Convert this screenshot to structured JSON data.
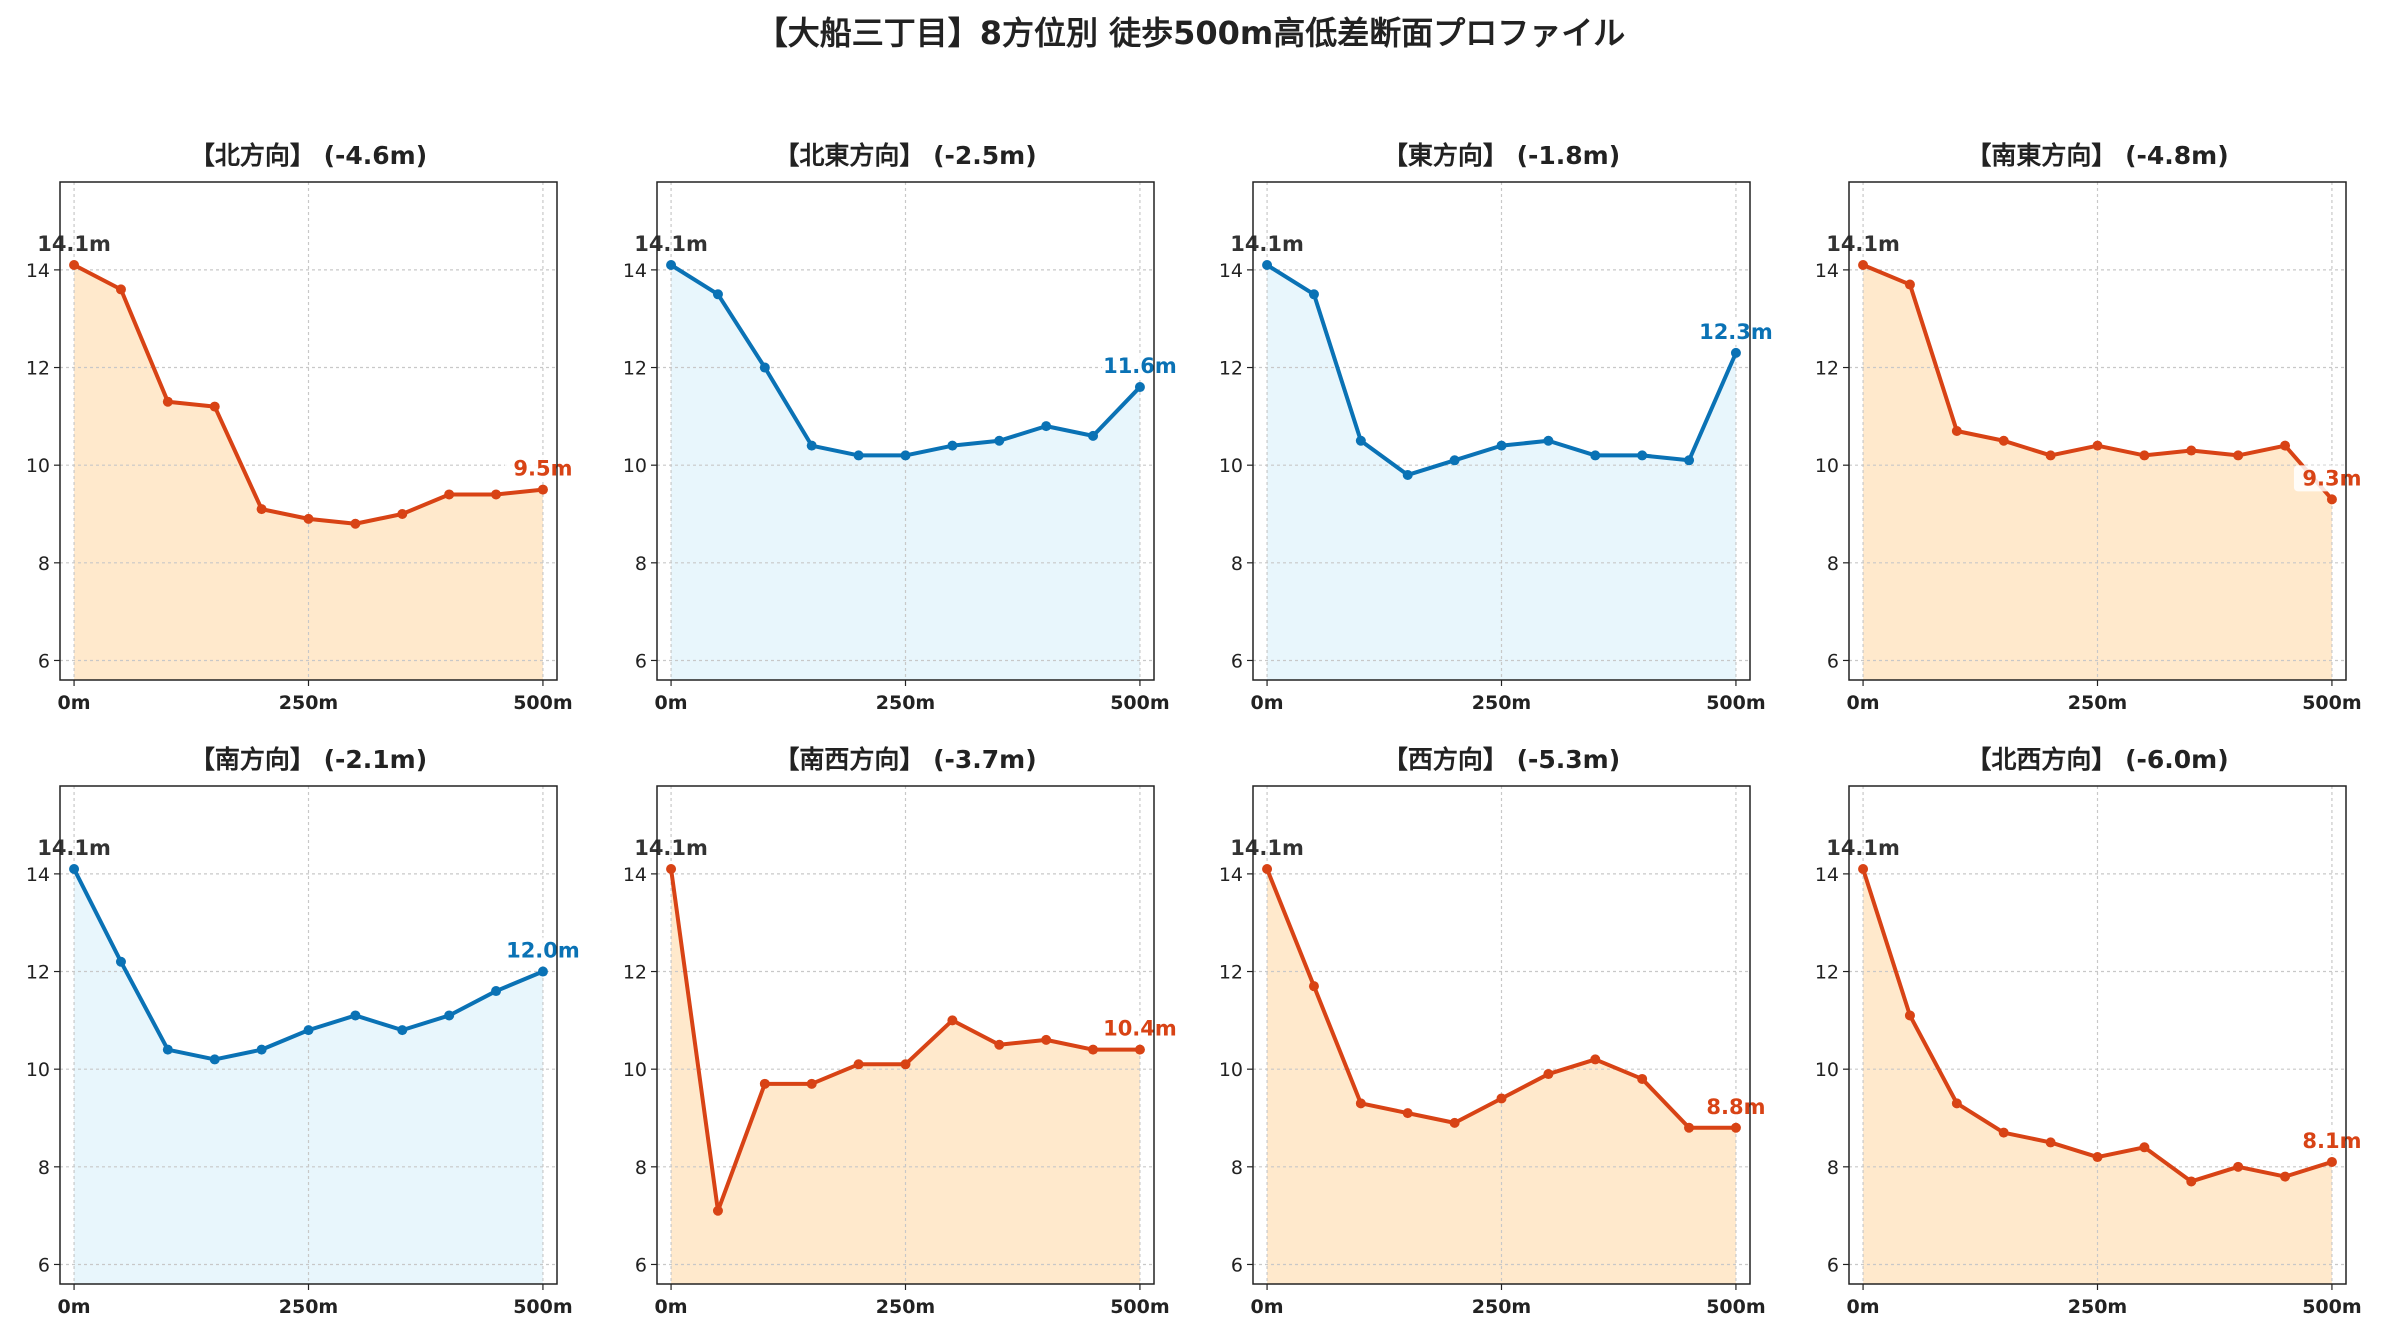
{
  "title": "【大船三丁目】8方位別 徒歩500m高低差断面プロファイル",
  "colors": {
    "down_line": "#d84315",
    "down_fill": "#ffe9cc",
    "up_line": "#0a72b5",
    "up_fill": "#e8f6fc",
    "start_label": "#333333",
    "grid": "#c8c8c8"
  },
  "chart_data": [
    {
      "type": "area",
      "title": "【北方向】 (-4.6m)",
      "trend": "down",
      "x": [
        0,
        50,
        100,
        150,
        200,
        250,
        300,
        350,
        400,
        450,
        500
      ],
      "y": [
        14.1,
        13.6,
        11.3,
        11.2,
        9.1,
        8.9,
        8.8,
        9.0,
        9.4,
        9.4,
        9.5
      ],
      "start_label": "14.1m",
      "end_label": "9.5m",
      "xticks": [
        "0m",
        "250m",
        "500m"
      ],
      "xtick_values": [
        0,
        250,
        500
      ],
      "yticks": [
        6,
        8,
        10,
        12,
        14
      ],
      "xlim": [
        -15,
        515
      ],
      "ylim": [
        5.6,
        15.8
      ],
      "grid": true
    },
    {
      "type": "area",
      "title": "【北東方向】 (-2.5m)",
      "trend": "up",
      "x": [
        0,
        50,
        100,
        150,
        200,
        250,
        300,
        350,
        400,
        450,
        500
      ],
      "y": [
        14.1,
        13.5,
        12.0,
        10.4,
        10.2,
        10.2,
        10.4,
        10.5,
        10.8,
        10.6,
        11.6
      ],
      "start_label": "14.1m",
      "end_label": "11.6m",
      "xticks": [
        "0m",
        "250m",
        "500m"
      ],
      "xtick_values": [
        0,
        250,
        500
      ],
      "yticks": [
        6,
        8,
        10,
        12,
        14
      ],
      "xlim": [
        -15,
        515
      ],
      "ylim": [
        5.6,
        15.8
      ],
      "grid": true
    },
    {
      "type": "area",
      "title": "【東方向】 (-1.8m)",
      "trend": "up",
      "x": [
        0,
        50,
        100,
        150,
        200,
        250,
        300,
        350,
        400,
        450,
        500
      ],
      "y": [
        14.1,
        13.5,
        10.5,
        9.8,
        10.1,
        10.4,
        10.5,
        10.2,
        10.2,
        10.1,
        12.3
      ],
      "start_label": "14.1m",
      "end_label": "12.3m",
      "xticks": [
        "0m",
        "250m",
        "500m"
      ],
      "xtick_values": [
        0,
        250,
        500
      ],
      "yticks": [
        6,
        8,
        10,
        12,
        14
      ],
      "xlim": [
        -15,
        515
      ],
      "ylim": [
        5.6,
        15.8
      ],
      "grid": true
    },
    {
      "type": "area",
      "title": "【南東方向】 (-4.8m)",
      "trend": "down",
      "x": [
        0,
        50,
        100,
        150,
        200,
        250,
        300,
        350,
        400,
        450,
        500
      ],
      "y": [
        14.1,
        13.7,
        10.7,
        10.5,
        10.2,
        10.4,
        10.2,
        10.3,
        10.2,
        10.4,
        9.3
      ],
      "start_label": "14.1m",
      "end_label": "9.3m",
      "xticks": [
        "0m",
        "250m",
        "500m"
      ],
      "xtick_values": [
        0,
        250,
        500
      ],
      "yticks": [
        6,
        8,
        10,
        12,
        14
      ],
      "xlim": [
        -15,
        515
      ],
      "ylim": [
        5.6,
        15.8
      ],
      "grid": true
    },
    {
      "type": "area",
      "title": "【南方向】 (-2.1m)",
      "trend": "up",
      "x": [
        0,
        50,
        100,
        150,
        200,
        250,
        300,
        350,
        400,
        450,
        500
      ],
      "y": [
        14.1,
        12.2,
        10.4,
        10.2,
        10.4,
        10.8,
        11.1,
        10.8,
        11.1,
        11.6,
        12.0
      ],
      "start_label": "14.1m",
      "end_label": "12.0m",
      "xticks": [
        "0m",
        "250m",
        "500m"
      ],
      "xtick_values": [
        0,
        250,
        500
      ],
      "yticks": [
        6,
        8,
        10,
        12,
        14
      ],
      "xlim": [
        -15,
        515
      ],
      "ylim": [
        5.6,
        15.8
      ],
      "grid": true
    },
    {
      "type": "area",
      "title": "【南西方向】 (-3.7m)",
      "trend": "down",
      "x": [
        0,
        50,
        100,
        150,
        200,
        250,
        300,
        350,
        400,
        450,
        500
      ],
      "y": [
        14.1,
        7.1,
        9.7,
        9.7,
        10.1,
        10.1,
        11.0,
        10.5,
        10.6,
        10.4,
        10.4
      ],
      "start_label": "14.1m",
      "end_label": "10.4m",
      "xticks": [
        "0m",
        "250m",
        "500m"
      ],
      "xtick_values": [
        0,
        250,
        500
      ],
      "yticks": [
        6,
        8,
        10,
        12,
        14
      ],
      "xlim": [
        -15,
        515
      ],
      "ylim": [
        5.6,
        15.8
      ],
      "grid": true
    },
    {
      "type": "area",
      "title": "【西方向】 (-5.3m)",
      "trend": "down",
      "x": [
        0,
        50,
        100,
        150,
        200,
        250,
        300,
        350,
        400,
        450,
        500
      ],
      "y": [
        14.1,
        11.7,
        9.3,
        9.1,
        8.9,
        9.4,
        9.9,
        10.2,
        9.8,
        8.8,
        8.8
      ],
      "start_label": "14.1m",
      "end_label": "8.8m",
      "xticks": [
        "0m",
        "250m",
        "500m"
      ],
      "xtick_values": [
        0,
        250,
        500
      ],
      "yticks": [
        6,
        8,
        10,
        12,
        14
      ],
      "xlim": [
        -15,
        515
      ],
      "ylim": [
        5.6,
        15.8
      ],
      "grid": true
    },
    {
      "type": "area",
      "title": "【北西方向】 (-6.0m)",
      "trend": "down",
      "x": [
        0,
        50,
        100,
        150,
        200,
        250,
        300,
        350,
        400,
        450,
        500
      ],
      "y": [
        14.1,
        11.1,
        9.3,
        8.7,
        8.5,
        8.2,
        8.4,
        7.7,
        8.0,
        7.8,
        8.1
      ],
      "start_label": "14.1m",
      "end_label": "8.1m",
      "xticks": [
        "0m",
        "250m",
        "500m"
      ],
      "xtick_values": [
        0,
        250,
        500
      ],
      "yticks": [
        6,
        8,
        10,
        12,
        14
      ],
      "xlim": [
        -15,
        515
      ],
      "ylim": [
        5.6,
        15.8
      ],
      "grid": true
    }
  ]
}
